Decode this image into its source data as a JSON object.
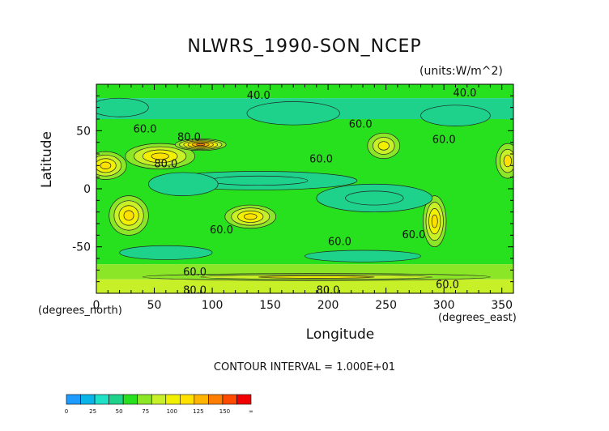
{
  "chart_data": {
    "type": "heatmap",
    "title": "NLWRS_1990-SON_NCEP",
    "units": "(units:W/m^2)",
    "xlabel": "Longitude",
    "ylabel": "Latitude",
    "x_unit_label": "(degrees_north)",
    "y_unit_label": "(degrees_east)",
    "xlim": [
      0,
      360
    ],
    "ylim": [
      -90,
      90
    ],
    "x_ticks": [
      0,
      50,
      100,
      150,
      200,
      250,
      300,
      350
    ],
    "y_ticks": [
      50,
      0,
      -50
    ],
    "contour_interval_text": "CONTOUR INTERVAL = 1.000E+01",
    "contour_labels": [
      {
        "text": "40.0",
        "lon": 140,
        "lat": 81
      },
      {
        "text": "40.0",
        "lon": 318,
        "lat": 83
      },
      {
        "text": "60.0",
        "lon": 42,
        "lat": 52
      },
      {
        "text": "80.0",
        "lon": 80,
        "lat": 45
      },
      {
        "text": "60.0",
        "lon": 228,
        "lat": 56
      },
      {
        "text": "60.0",
        "lon": 300,
        "lat": 43
      },
      {
        "text": "80.0",
        "lon": 60,
        "lat": 22
      },
      {
        "text": "60.0",
        "lon": 194,
        "lat": 26
      },
      {
        "text": "60.0",
        "lon": 108,
        "lat": -35
      },
      {
        "text": "60.0",
        "lon": 210,
        "lat": -45
      },
      {
        "text": "60.0",
        "lon": 274,
        "lat": -39
      },
      {
        "text": "60.0",
        "lon": 85,
        "lat": -71
      },
      {
        "text": "80.0",
        "lon": 85,
        "lat": -87
      },
      {
        "text": "80.0",
        "lon": 200,
        "lat": -87
      },
      {
        "text": "60.0",
        "lon": 303,
        "lat": -82
      }
    ],
    "field_bands": [
      {
        "lat_min": 78,
        "lat_max": 90,
        "value": 55
      },
      {
        "lat_min": 60,
        "lat_max": 78,
        "value": 48
      },
      {
        "lat_min": -65,
        "lat_max": 60,
        "value": 58
      },
      {
        "lat_min": -78,
        "lat_max": -65,
        "value": 66
      },
      {
        "lat_min": -90,
        "lat_max": -78,
        "value": 85
      }
    ],
    "features": [
      {
        "lon": 8,
        "lat": 20,
        "rlon": 18,
        "rlat": 12,
        "value": 110
      },
      {
        "lon": 55,
        "lat": 28,
        "rlon": 30,
        "rlat": 11,
        "value": 110
      },
      {
        "lon": 90,
        "lat": 38,
        "rlon": 22,
        "rlat": 5,
        "value": 130
      },
      {
        "lon": 28,
        "lat": -23,
        "rlon": 17,
        "rlat": 17,
        "value": 105
      },
      {
        "lon": 133,
        "lat": -24,
        "rlon": 22,
        "rlat": 10,
        "value": 105
      },
      {
        "lon": 248,
        "lat": 37,
        "rlon": 14,
        "rlat": 11,
        "value": 95
      },
      {
        "lon": 292,
        "lat": -28,
        "rlon": 10,
        "rlat": 22,
        "value": 110
      },
      {
        "lon": 355,
        "lat": 24,
        "rlon": 10,
        "rlat": 15,
        "value": 100
      },
      {
        "lon": 140,
        "lat": 7,
        "rlon": 85,
        "rlat": 8,
        "value": 38
      },
      {
        "lon": 240,
        "lat": -8,
        "rlon": 50,
        "rlat": 12,
        "value": 38
      },
      {
        "lon": 75,
        "lat": 4,
        "rlon": 30,
        "rlat": 10,
        "value": 40
      },
      {
        "lon": 20,
        "lat": 70,
        "rlon": 25,
        "rlat": 8,
        "value": 40
      },
      {
        "lon": 170,
        "lat": 65,
        "rlon": 40,
        "rlat": 10,
        "value": 42
      },
      {
        "lon": 310,
        "lat": 63,
        "rlon": 30,
        "rlat": 9,
        "value": 42
      },
      {
        "lon": 60,
        "lat": -55,
        "rlon": 40,
        "rlat": 6,
        "value": 45
      },
      {
        "lon": 230,
        "lat": -58,
        "rlon": 50,
        "rlat": 5,
        "value": 48
      },
      {
        "lon": 190,
        "lat": -76,
        "rlon": 150,
        "rlat": 3,
        "value": 95
      }
    ],
    "colorbar": {
      "boundaries": [
        0,
        12.5,
        25,
        37.5,
        50,
        62.5,
        75,
        87.5,
        100,
        112.5,
        125,
        137.5,
        150,
        162.5
      ],
      "colors": [
        "#1e9bff",
        "#0ab4e6",
        "#1ee1c8",
        "#1ed28c",
        "#28e11e",
        "#8ce628",
        "#c8f028",
        "#f0f000",
        "#ffe100",
        "#ffb400",
        "#ff7d00",
        "#ff4b00",
        "#f00000"
      ],
      "labels": [
        "0",
        "25",
        "50",
        "75",
        "100",
        "125",
        "150",
        "∞"
      ]
    }
  }
}
